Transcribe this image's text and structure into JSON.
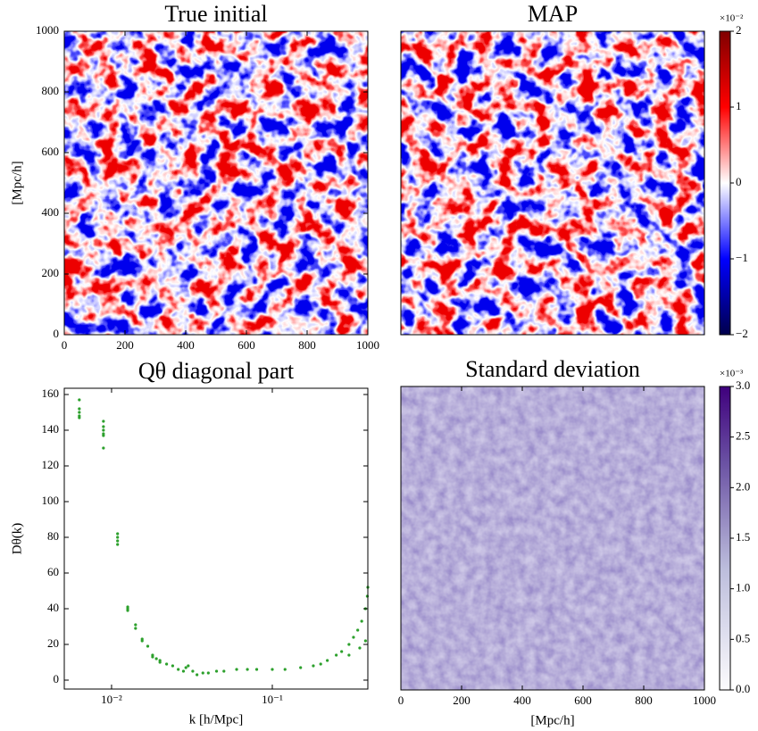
{
  "chart_data": [
    {
      "type": "heatmap",
      "title": "True initial",
      "ylabel": "[Mpc/h]",
      "cmap": "seismic",
      "xlim": [
        0,
        1000
      ],
      "ylim": [
        0,
        1000
      ],
      "xticks": [
        0,
        200,
        400,
        600,
        800,
        1000
      ],
      "yticks": [
        0,
        200,
        400,
        600,
        800,
        1000
      ]
    },
    {
      "type": "heatmap",
      "title": "MAP",
      "cmap": "seismic",
      "xlim": [
        0,
        1000
      ],
      "ylim": [
        0,
        1000
      ],
      "colorbar": {
        "lim": [
          -2,
          2
        ],
        "offset": "×10⁻²",
        "ticks": [
          {
            "value": -2,
            "label": "−2"
          },
          {
            "value": -1,
            "label": "−1"
          },
          0,
          1,
          2
        ]
      }
    },
    {
      "type": "scatter",
      "title": "Qθ diagonal part",
      "xlabel": "k [h/Mpc]",
      "ylabel": "Dθ(k)",
      "color": "#2ca02c",
      "xscale": "log",
      "xlim": [
        0.00508,
        0.393
      ],
      "ylim": [
        -5,
        163.5
      ],
      "xticks": [
        {
          "value": 0.01,
          "label": "10⁻²"
        },
        {
          "value": 0.1,
          "label": "10⁻¹"
        }
      ],
      "yticks": [
        0,
        20,
        40,
        60,
        80,
        100,
        120,
        140,
        160
      ],
      "x": [
        0.0063,
        0.0063,
        0.0063,
        0.0063,
        0.0063,
        0.0089,
        0.0089,
        0.0089,
        0.0089,
        0.0089,
        0.0089,
        0.0109,
        0.0109,
        0.0109,
        0.0109,
        0.0126,
        0.0126,
        0.0126,
        0.0141,
        0.0141,
        0.0155,
        0.0155,
        0.0168,
        0.018,
        0.018,
        0.019,
        0.02,
        0.02,
        0.022,
        0.024,
        0.026,
        0.028,
        0.029,
        0.03,
        0.032,
        0.034,
        0.037,
        0.04,
        0.045,
        0.05,
        0.06,
        0.07,
        0.08,
        0.1,
        0.12,
        0.15,
        0.18,
        0.2,
        0.22,
        0.25,
        0.27,
        0.3,
        0.3,
        0.32,
        0.34,
        0.35,
        0.36,
        0.38,
        0.38,
        0.39,
        0.393
      ],
      "values": [
        157,
        152,
        150,
        148,
        147,
        145,
        142,
        140,
        138,
        137,
        130,
        82,
        80,
        78,
        76,
        41,
        40,
        39,
        31,
        29,
        23,
        22,
        19,
        14,
        13,
        12,
        11,
        10,
        9,
        8,
        6,
        5,
        7,
        8,
        5,
        3,
        4,
        4,
        5,
        5,
        6,
        6,
        6,
        6,
        6,
        7,
        8,
        9,
        11,
        14,
        16,
        20,
        14,
        24,
        28,
        18,
        33,
        40,
        22,
        47,
        52
      ]
    },
    {
      "type": "heatmap",
      "title": "Standard deviation",
      "xlabel": "[Mpc/h]",
      "cmap": "purples",
      "xlim": [
        0,
        1000
      ],
      "ylim": [
        0,
        1000
      ],
      "xticks": [
        0,
        200,
        400,
        600,
        800,
        1000
      ],
      "colorbar": {
        "lim": [
          0,
          3
        ],
        "offset": "×10⁻³",
        "ticks": [
          {
            "value": 0,
            "label": "0.0"
          },
          0.5,
          {
            "value": 1,
            "label": "1.0"
          },
          1.5,
          {
            "value": 2,
            "label": "2.0"
          },
          2.5,
          {
            "value": 3,
            "label": "3.0"
          }
        ]
      }
    }
  ]
}
